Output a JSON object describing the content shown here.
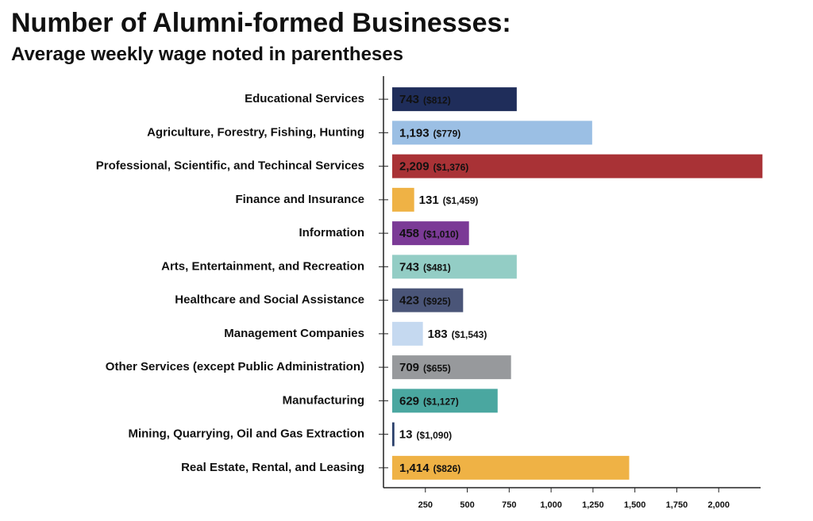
{
  "chart_data": {
    "type": "hbar",
    "title": "Number of Alumni-formed Businesses:",
    "subtitle": "Average weekly wage noted in parentheses",
    "categories": [
      "Educational Services",
      "Agriculture, Forestry, Fishing, Hunting",
      "Professional, Scientific, and Techincal Services",
      "Finance and Insurance",
      "Information",
      "Arts, Entertainment, and Recreation",
      "Healthcare and Social Assistance",
      "Management Companies",
      "Other Services (except Public Administration)",
      "Manufacturing",
      "Mining, Quarrying, Oil and Gas Extraction",
      "Real Estate, Rental, and Leasing"
    ],
    "values": [
      743,
      1193,
      2209,
      131,
      458,
      743,
      423,
      183,
      709,
      629,
      13,
      1414
    ],
    "value_labels": [
      "743",
      "1,193",
      "2,209",
      "131",
      "458",
      "743",
      "423",
      "183",
      "709",
      "629",
      "13",
      "1,414"
    ],
    "wages": [
      812,
      779,
      1376,
      1459,
      1010,
      481,
      925,
      1543,
      655,
      1127,
      1090,
      826
    ],
    "wage_labels": [
      "($812)",
      "($779)",
      "($1,376)",
      "($1,459)",
      "($1,010)",
      "($481)",
      "($925)",
      "($1,543)",
      "($655)",
      "($1,127)",
      "($1,090)",
      "($826)"
    ],
    "colors": [
      "#1f2d5a",
      "#9bbfe4",
      "#a93236",
      "#efb245",
      "#7b3a96",
      "#93cdc5",
      "#4a5578",
      "#c5d9f0",
      "#97999c",
      "#4aa7a0",
      "#2a3f6b",
      "#efb245"
    ],
    "xlim": [
      0,
      2250
    ],
    "xticks": [
      250,
      500,
      750,
      {
        "value": 1000,
        "label": "1,000"
      },
      {
        "value": 1250,
        "label": "1,250"
      },
      {
        "value": 1500,
        "label": "1,500"
      },
      {
        "value": 1750,
        "label": "1,750"
      },
      {
        "value": 2000,
        "label": "2,000"
      }
    ]
  }
}
